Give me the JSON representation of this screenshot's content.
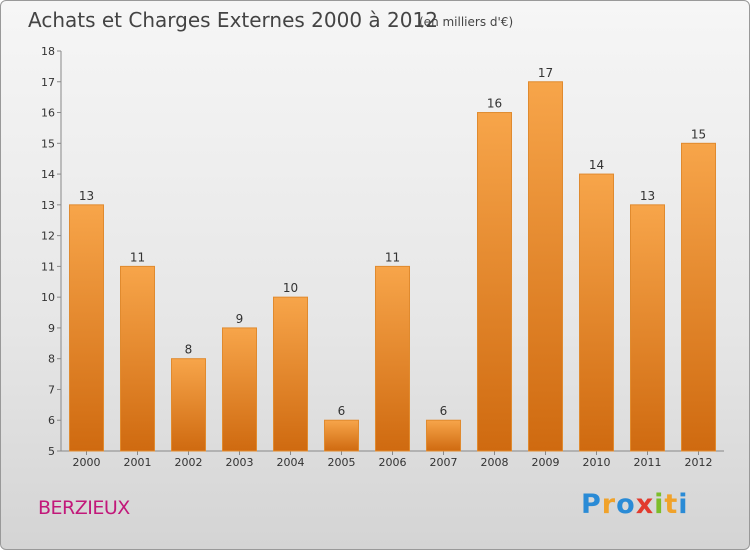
{
  "title": "Achats et Charges Externes 2000 à 2012",
  "subtitle": "(en milliers d'€)",
  "commune": "BERZIEUX",
  "logo": {
    "letters": [
      {
        "char": "P",
        "color": "#2a8bd6"
      },
      {
        "char": "r",
        "color": "#f0a22a"
      },
      {
        "char": "o",
        "color": "#2a8bd6"
      },
      {
        "char": "x",
        "color": "#e23b2e"
      },
      {
        "char": "i",
        "color": "#7cbd2a"
      },
      {
        "char": "t",
        "color": "#f0a22a"
      },
      {
        "char": "i",
        "color": "#2a8bd6"
      }
    ]
  },
  "chart_data": {
    "type": "bar",
    "categories": [
      "2000",
      "2001",
      "2002",
      "2003",
      "2004",
      "2005",
      "2006",
      "2007",
      "2008",
      "2009",
      "2010",
      "2011",
      "2012"
    ],
    "values": [
      13,
      11,
      8,
      9,
      10,
      6,
      11,
      6,
      16,
      17,
      14,
      13,
      15
    ],
    "data_labels": [
      "13",
      "11",
      "8",
      "9",
      "10",
      "6",
      "11",
      "6",
      "16",
      "17",
      "14",
      "13",
      "15"
    ],
    "title": "Achats et Charges Externes 2000 à 2012",
    "xlabel": "",
    "ylabel": "",
    "ylim": [
      5,
      18
    ],
    "yticks": [
      5,
      6,
      7,
      8,
      9,
      10,
      11,
      12,
      13,
      14,
      15,
      16,
      17,
      18
    ],
    "ytick_labels": [
      "5",
      "6",
      "7",
      "8",
      "9",
      "10",
      "11",
      "12",
      "13",
      "14",
      "15",
      "16",
      "17",
      "18"
    ],
    "grid": false,
    "bar_color": "#f0902e",
    "bar_color_dark": "#d26d12"
  }
}
